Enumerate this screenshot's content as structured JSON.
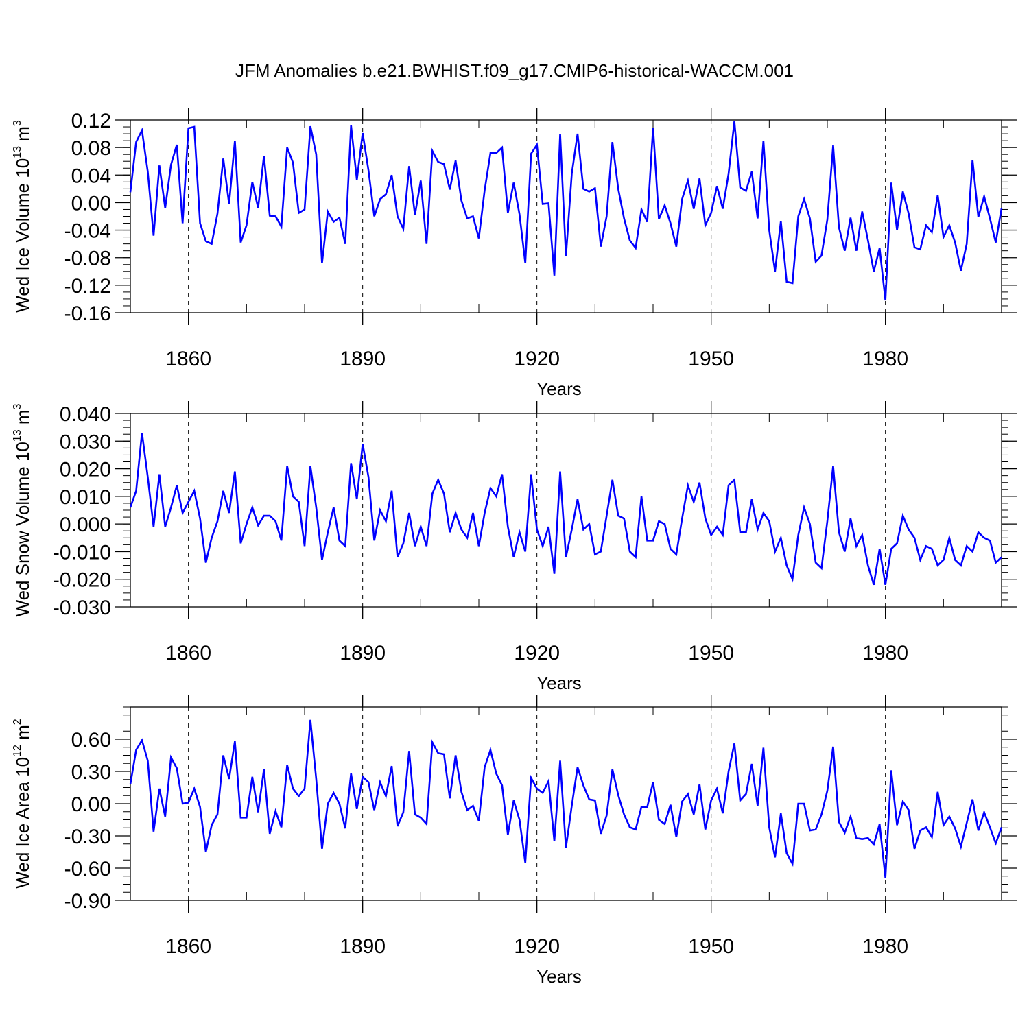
{
  "title": "JFM Anomalies b.e21.BWHIST.f09_g17.CMIP6-historical-WACCM.001",
  "colors": {
    "line": "#0000ff",
    "axis": "#000000",
    "grid": "#000000"
  },
  "chart_data": [
    {
      "type": "line",
      "ylabel_main": "Wed Ice Volume 10",
      "ylabel_sup": "13",
      "ylabel_unit": " m",
      "ylabel_unit_sup": "3",
      "xlabel": "Years",
      "xlim": [
        1850,
        2000
      ],
      "ylim": [
        -0.16,
        0.12
      ],
      "xticks": [
        1860,
        1890,
        1920,
        1950,
        1980
      ],
      "xtick_labels": [
        "1860",
        "1890",
        "1920",
        "1950",
        "1980"
      ],
      "yticks": [
        -0.16,
        -0.12,
        -0.08,
        -0.04,
        0.0,
        0.04,
        0.08,
        0.12
      ],
      "ytick_labels": [
        "-0.16",
        "-0.12",
        "-0.08",
        "-0.04",
        "0.00",
        "0.04",
        "0.08",
        "0.12"
      ],
      "x_start": 1850,
      "series": [
        {
          "name": "Wed Ice Volume",
          "values": [
            0.015,
            0.088,
            0.105,
            0.045,
            -0.048,
            0.054,
            -0.008,
            0.055,
            0.084,
            -0.03,
            0.108,
            0.11,
            -0.03,
            -0.056,
            -0.06,
            -0.016,
            0.064,
            -0.002,
            0.09,
            -0.058,
            -0.033,
            0.03,
            -0.008,
            0.068,
            -0.019,
            -0.02,
            -0.035,
            0.08,
            0.058,
            -0.015,
            -0.01,
            0.111,
            0.07,
            -0.088,
            -0.013,
            -0.028,
            -0.022,
            -0.06,
            0.112,
            0.033,
            0.101,
            0.047,
            -0.02,
            0.005,
            0.012,
            0.04,
            -0.02,
            -0.038,
            0.053,
            -0.018,
            0.032,
            -0.06,
            0.075,
            0.059,
            0.056,
            0.019,
            0.061,
            0.003,
            -0.023,
            -0.02,
            -0.052,
            0.018,
            0.072,
            0.072,
            0.08,
            -0.015,
            0.029,
            -0.017,
            -0.088,
            0.071,
            0.084,
            -0.002,
            -0.001,
            -0.106,
            0.1,
            -0.078,
            0.042,
            0.1,
            0.02,
            0.016,
            0.021,
            -0.064,
            -0.02,
            0.088,
            0.02,
            -0.023,
            -0.055,
            -0.066,
            -0.01,
            -0.028,
            0.109,
            -0.024,
            -0.004,
            -0.03,
            -0.064,
            0.005,
            0.032,
            -0.009,
            0.035,
            -0.033,
            -0.015,
            0.024,
            -0.009,
            0.042,
            0.118,
            0.022,
            0.017,
            0.045,
            -0.023,
            0.09,
            -0.04,
            -0.1,
            -0.027,
            -0.115,
            -0.117,
            -0.02,
            0.005,
            -0.023,
            -0.086,
            -0.077,
            -0.025,
            0.083,
            -0.036,
            -0.07,
            -0.022,
            -0.07,
            -0.013,
            -0.055,
            -0.1,
            -0.066,
            -0.142,
            0.029,
            -0.04,
            0.016,
            -0.016,
            -0.065,
            -0.068,
            -0.033,
            -0.043,
            0.011,
            -0.05,
            -0.033,
            -0.058,
            -0.099,
            -0.06,
            0.062,
            -0.021,
            0.009,
            -0.023,
            -0.058,
            -0.008
          ]
        }
      ]
    },
    {
      "type": "line",
      "ylabel_main": "Wed Snow Volume 10",
      "ylabel_sup": "13",
      "ylabel_unit": " m",
      "ylabel_unit_sup": "3",
      "xlabel": "Years",
      "xlim": [
        1850,
        2000
      ],
      "ylim": [
        -0.03,
        0.04
      ],
      "xticks": [
        1860,
        1890,
        1920,
        1950,
        1980
      ],
      "xtick_labels": [
        "1860",
        "1890",
        "1920",
        "1950",
        "1980"
      ],
      "yticks": [
        -0.03,
        -0.02,
        -0.01,
        0.0,
        0.01,
        0.02,
        0.03,
        0.04
      ],
      "ytick_labels": [
        "-0.030",
        "-0.020",
        "-0.010",
        "0.000",
        "0.010",
        "0.020",
        "0.030",
        "0.040"
      ],
      "x_start": 1850,
      "series": [
        {
          "name": "Wed Snow Volume",
          "values": [
            0.006,
            0.012,
            0.033,
            0.017,
            -0.001,
            0.018,
            -0.001,
            0.006,
            0.014,
            0.004,
            0.008,
            0.012,
            0.002,
            -0.014,
            -0.005,
            0.001,
            0.012,
            0.004,
            0.019,
            -0.007,
            0.0,
            0.006,
            -0.0005,
            0.003,
            0.003,
            0.001,
            -0.006,
            0.021,
            0.01,
            0.008,
            -0.008,
            0.021,
            0.006,
            -0.013,
            -0.003,
            0.006,
            -0.006,
            -0.008,
            0.022,
            0.009,
            0.029,
            0.017,
            -0.006,
            0.005,
            0.001,
            0.012,
            -0.012,
            -0.007,
            0.004,
            -0.008,
            -0.001,
            -0.008,
            0.011,
            0.016,
            0.011,
            -0.003,
            0.004,
            -0.002,
            -0.005,
            0.004,
            -0.008,
            0.004,
            0.013,
            0.01,
            0.018,
            -0.001,
            -0.012,
            -0.003,
            -0.01,
            0.018,
            -0.002,
            -0.008,
            -0.001,
            -0.018,
            0.019,
            -0.012,
            -0.002,
            0.009,
            -0.002,
            0.0,
            -0.011,
            -0.01,
            0.003,
            0.016,
            0.003,
            0.002,
            -0.01,
            -0.012,
            0.01,
            -0.006,
            -0.006,
            0.001,
            0.0,
            -0.009,
            -0.011,
            0.002,
            0.014,
            0.008,
            0.015,
            0.002,
            -0.004,
            -0.001,
            -0.004,
            0.014,
            0.016,
            -0.003,
            -0.003,
            0.009,
            -0.002,
            0.004,
            0.001,
            -0.01,
            -0.005,
            -0.015,
            -0.02,
            -0.004,
            0.006,
            0.0,
            -0.014,
            -0.016,
            0.001,
            0.021,
            -0.003,
            -0.01,
            0.002,
            -0.008,
            -0.004,
            -0.015,
            -0.022,
            -0.009,
            -0.022,
            -0.009,
            -0.007,
            0.003,
            -0.002,
            -0.005,
            -0.013,
            -0.008,
            -0.009,
            -0.015,
            -0.013,
            -0.005,
            -0.013,
            -0.015,
            -0.008,
            -0.01,
            -0.003,
            -0.005,
            -0.006,
            -0.014,
            -0.012
          ]
        }
      ]
    },
    {
      "type": "line",
      "ylabel_main": "Wed Ice Area 10",
      "ylabel_sup": "12",
      "ylabel_unit": " m",
      "ylabel_unit_sup": "2",
      "xlabel": "Years",
      "xlim": [
        1850,
        2000
      ],
      "ylim": [
        -0.9,
        0.9
      ],
      "xticks": [
        1860,
        1890,
        1920,
        1950,
        1980
      ],
      "xtick_labels": [
        "1860",
        "1890",
        "1920",
        "1950",
        "1980"
      ],
      "yticks": [
        -0.9,
        -0.6,
        -0.3,
        0.0,
        0.3,
        0.6
      ],
      "ytick_labels": [
        "-0.90",
        "-0.60",
        "-0.30",
        "0.00",
        "0.30",
        "0.60"
      ],
      "x_start": 1850,
      "series": [
        {
          "name": "Wed Ice Area",
          "values": [
            0.18,
            0.5,
            0.59,
            0.4,
            -0.26,
            0.14,
            -0.12,
            0.43,
            0.33,
            0.0,
            0.01,
            0.14,
            -0.03,
            -0.45,
            -0.2,
            -0.1,
            0.45,
            0.23,
            0.58,
            -0.13,
            -0.13,
            0.25,
            -0.08,
            0.32,
            -0.28,
            -0.07,
            -0.22,
            0.36,
            0.14,
            0.07,
            0.14,
            0.78,
            0.23,
            -0.42,
            0.0,
            0.1,
            0.0,
            -0.23,
            0.28,
            -0.05,
            0.25,
            0.2,
            -0.06,
            0.2,
            0.07,
            0.35,
            -0.21,
            -0.08,
            0.49,
            -0.1,
            -0.13,
            -0.19,
            0.57,
            0.47,
            0.46,
            0.05,
            0.45,
            0.11,
            -0.06,
            -0.02,
            -0.16,
            0.34,
            0.5,
            0.28,
            0.17,
            -0.29,
            0.03,
            -0.15,
            -0.55,
            0.24,
            0.14,
            0.1,
            0.21,
            -0.35,
            0.4,
            -0.41,
            -0.02,
            0.34,
            0.17,
            0.04,
            0.03,
            -0.28,
            -0.11,
            0.32,
            0.08,
            -0.1,
            -0.22,
            -0.24,
            -0.03,
            -0.03,
            0.2,
            -0.15,
            -0.19,
            -0.01,
            -0.31,
            0.02,
            0.09,
            -0.1,
            0.18,
            -0.24,
            0.03,
            0.14,
            -0.09,
            0.3,
            0.56,
            0.03,
            0.09,
            0.37,
            -0.02,
            0.52,
            -0.22,
            -0.5,
            -0.09,
            -0.46,
            -0.56,
            0.0,
            0.0,
            -0.25,
            -0.24,
            -0.1,
            0.12,
            0.53,
            -0.17,
            -0.27,
            -0.12,
            -0.32,
            -0.33,
            -0.32,
            -0.38,
            -0.19,
            -0.69,
            0.31,
            -0.2,
            0.02,
            -0.06,
            -0.42,
            -0.25,
            -0.22,
            -0.31,
            0.11,
            -0.2,
            -0.12,
            -0.23,
            -0.4,
            -0.18,
            0.04,
            -0.25,
            -0.08,
            -0.22,
            -0.37,
            -0.22
          ]
        }
      ]
    }
  ]
}
